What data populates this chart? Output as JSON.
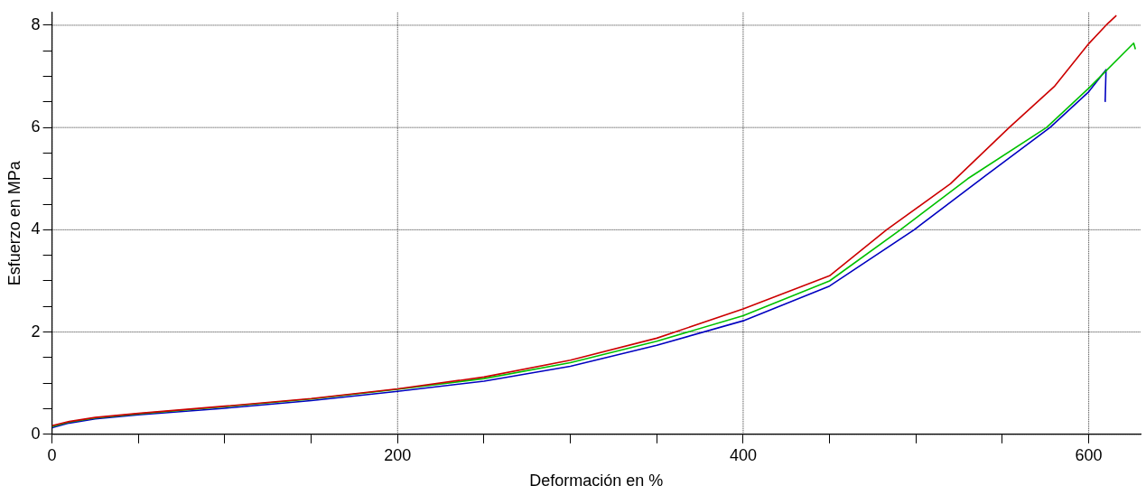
{
  "chart_data": {
    "type": "line",
    "xlabel": "Deformación en %",
    "ylabel": "Esfuerzo en MPa",
    "xlim": [
      0,
      630
    ],
    "ylim": [
      0,
      8.25
    ],
    "xticks": [
      0,
      {
        "value": 50,
        "label": null
      },
      {
        "value": 100,
        "label": null
      },
      {
        "value": 150,
        "label": null
      },
      200,
      {
        "value": 250,
        "label": null
      },
      {
        "value": 300,
        "label": null
      },
      {
        "value": 350,
        "label": null
      },
      400,
      {
        "value": 450,
        "label": null
      },
      {
        "value": 500,
        "label": null
      },
      {
        "value": 550,
        "label": null
      },
      600
    ],
    "yticks": [
      0,
      {
        "value": 0.5,
        "label": null
      },
      {
        "value": 1,
        "label": null
      },
      {
        "value": 1.5,
        "label": null
      },
      2,
      {
        "value": 2.5,
        "label": null
      },
      {
        "value": 3,
        "label": null
      },
      {
        "value": 3.5,
        "label": null
      },
      4,
      {
        "value": 4.5,
        "label": null
      },
      {
        "value": 5,
        "label": null
      },
      {
        "value": 5.5,
        "label": null
      },
      6,
      {
        "value": 6.5,
        "label": null
      },
      {
        "value": 7,
        "label": null
      },
      {
        "value": 7.5,
        "label": null
      },
      8
    ],
    "grid": true,
    "marker": "none",
    "line_style": "solid",
    "series": [
      {
        "color": "#cc0000",
        "x": [
          0,
          10,
          25,
          50,
          100,
          150,
          200,
          250,
          300,
          350,
          400,
          450,
          483,
          520,
          554,
          580,
          600,
          610,
          616
        ],
        "values": [
          0.17,
          0.25,
          0.33,
          0.41,
          0.55,
          0.7,
          0.89,
          1.12,
          1.45,
          1.88,
          2.45,
          3.1,
          4.0,
          4.9,
          6.0,
          6.8,
          7.64,
          8.0,
          8.19
        ]
      },
      {
        "color": "#00c000",
        "x": [
          0,
          10,
          25,
          50,
          100,
          150,
          200,
          250,
          300,
          350,
          400,
          450,
          491,
          530,
          575.6,
          600,
          626,
          627
        ],
        "values": [
          0.15,
          0.24,
          0.32,
          0.4,
          0.54,
          0.69,
          0.88,
          1.09,
          1.4,
          1.82,
          2.32,
          3.0,
          4.0,
          5.0,
          6.0,
          6.77,
          7.65,
          7.53
        ]
      },
      {
        "color": "#0000c0",
        "x": [
          0,
          10,
          25,
          50,
          100,
          150,
          200,
          250,
          300,
          350,
          400,
          450,
          499,
          540,
          577.6,
          600,
          610,
          609.5
        ],
        "values": [
          0.13,
          0.22,
          0.3,
          0.38,
          0.51,
          0.66,
          0.84,
          1.04,
          1.33,
          1.74,
          2.22,
          2.9,
          4.0,
          5.05,
          6.0,
          6.7,
          7.13,
          6.5
        ]
      }
    ]
  }
}
